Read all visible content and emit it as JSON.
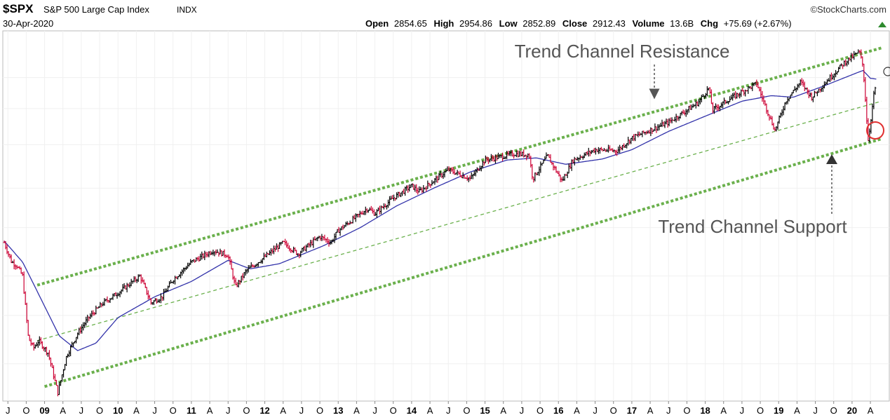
{
  "header": {
    "symbol": "$SPX",
    "name": "S&P 500 Large Cap Index",
    "exchange": "INDX",
    "date": "30-Apr-2020",
    "watermark": "©StockCharts.com",
    "quote": {
      "open_label": "Open",
      "open": "2854.65",
      "high_label": "High",
      "high": "2954.86",
      "low_label": "Low",
      "low": "2852.89",
      "close_label": "Close",
      "close": "2912.43",
      "volume_label": "Volume",
      "volume": "13.6B",
      "chg_label": "Chg",
      "chg": "+75.69 (+2.67%)"
    }
  },
  "annotations": {
    "resistance": "Trend Channel Resistance",
    "support": "Trend Channel Support"
  },
  "colors": {
    "up_bar": "#000000",
    "down_bar": "#cc0033",
    "moving_average": "#3333aa",
    "channel": "#6ab04c",
    "annotation_text": "#555555",
    "circle": "#e03030"
  },
  "chart_data": {
    "type": "bar",
    "x_range": [
      "2008-06",
      "2020-05"
    ],
    "y_scale": "log",
    "ylim": [
      700,
      3500
    ],
    "x_ticks": [
      {
        "label": "J",
        "date": "2008.50",
        "bold": false
      },
      {
        "label": "O",
        "date": "2008.75",
        "bold": false
      },
      {
        "label": "09",
        "date": "2009.00",
        "bold": true
      },
      {
        "label": "A",
        "date": "2009.25",
        "bold": false
      },
      {
        "label": "J",
        "date": "2009.50",
        "bold": false
      },
      {
        "label": "O",
        "date": "2009.75",
        "bold": false
      },
      {
        "label": "10",
        "date": "2010.00",
        "bold": true
      },
      {
        "label": "A",
        "date": "2010.25",
        "bold": false
      },
      {
        "label": "J",
        "date": "2010.50",
        "bold": false
      },
      {
        "label": "O",
        "date": "2010.75",
        "bold": false
      },
      {
        "label": "11",
        "date": "2011.00",
        "bold": true
      },
      {
        "label": "A",
        "date": "2011.25",
        "bold": false
      },
      {
        "label": "J",
        "date": "2011.50",
        "bold": false
      },
      {
        "label": "O",
        "date": "2011.75",
        "bold": false
      },
      {
        "label": "12",
        "date": "2012.00",
        "bold": true
      },
      {
        "label": "A",
        "date": "2012.25",
        "bold": false
      },
      {
        "label": "J",
        "date": "2012.50",
        "bold": false
      },
      {
        "label": "O",
        "date": "2012.75",
        "bold": false
      },
      {
        "label": "13",
        "date": "2013.00",
        "bold": true
      },
      {
        "label": "A",
        "date": "2013.25",
        "bold": false
      },
      {
        "label": "J",
        "date": "2013.50",
        "bold": false
      },
      {
        "label": "O",
        "date": "2013.75",
        "bold": false
      },
      {
        "label": "14",
        "date": "2014.00",
        "bold": true
      },
      {
        "label": "A",
        "date": "2014.25",
        "bold": false
      },
      {
        "label": "J",
        "date": "2014.50",
        "bold": false
      },
      {
        "label": "O",
        "date": "2014.75",
        "bold": false
      },
      {
        "label": "15",
        "date": "2015.00",
        "bold": true
      },
      {
        "label": "A",
        "date": "2015.25",
        "bold": false
      },
      {
        "label": "J",
        "date": "2015.50",
        "bold": false
      },
      {
        "label": "O",
        "date": "2015.75",
        "bold": false
      },
      {
        "label": "16",
        "date": "2016.00",
        "bold": true
      },
      {
        "label": "A",
        "date": "2016.25",
        "bold": false
      },
      {
        "label": "J",
        "date": "2016.50",
        "bold": false
      },
      {
        "label": "O",
        "date": "2016.75",
        "bold": false
      },
      {
        "label": "17",
        "date": "2017.00",
        "bold": true
      },
      {
        "label": "A",
        "date": "2017.25",
        "bold": false
      },
      {
        "label": "J",
        "date": "2017.50",
        "bold": false
      },
      {
        "label": "O",
        "date": "2017.75",
        "bold": false
      },
      {
        "label": "18",
        "date": "2018.00",
        "bold": true
      },
      {
        "label": "A",
        "date": "2018.25",
        "bold": false
      },
      {
        "label": "J",
        "date": "2018.50",
        "bold": false
      },
      {
        "label": "O",
        "date": "2018.75",
        "bold": false
      },
      {
        "label": "19",
        "date": "2019.00",
        "bold": true
      },
      {
        "label": "A",
        "date": "2019.25",
        "bold": false
      },
      {
        "label": "J",
        "date": "2019.50",
        "bold": false
      },
      {
        "label": "O",
        "date": "2019.75",
        "bold": false
      },
      {
        "label": "20",
        "date": "2020.00",
        "bold": true
      },
      {
        "label": "A",
        "date": "2020.25",
        "bold": false
      }
    ],
    "price_keypoints": [
      [
        2008.45,
        1400
      ],
      [
        2008.55,
        1280
      ],
      [
        2008.62,
        1260
      ],
      [
        2008.7,
        1200
      ],
      [
        2008.78,
        900
      ],
      [
        2008.85,
        860
      ],
      [
        2008.92,
        890
      ],
      [
        2009.05,
        840
      ],
      [
        2009.18,
        700
      ],
      [
        2009.3,
        830
      ],
      [
        2009.45,
        920
      ],
      [
        2009.6,
        990
      ],
      [
        2009.8,
        1060
      ],
      [
        2010.0,
        1110
      ],
      [
        2010.3,
        1200
      ],
      [
        2010.45,
        1060
      ],
      [
        2010.6,
        1090
      ],
      [
        2010.75,
        1180
      ],
      [
        2011.0,
        1280
      ],
      [
        2011.3,
        1350
      ],
      [
        2011.5,
        1320
      ],
      [
        2011.6,
        1140
      ],
      [
        2011.75,
        1230
      ],
      [
        2012.0,
        1310
      ],
      [
        2012.25,
        1400
      ],
      [
        2012.45,
        1330
      ],
      [
        2012.75,
        1440
      ],
      [
        2012.9,
        1400
      ],
      [
        2013.0,
        1480
      ],
      [
        2013.4,
        1640
      ],
      [
        2013.5,
        1600
      ],
      [
        2013.75,
        1720
      ],
      [
        2014.0,
        1820
      ],
      [
        2014.1,
        1770
      ],
      [
        2014.5,
        1960
      ],
      [
        2014.8,
        1880
      ],
      [
        2015.0,
        2050
      ],
      [
        2015.4,
        2110
      ],
      [
        2015.6,
        2100
      ],
      [
        2015.65,
        1880
      ],
      [
        2015.85,
        2090
      ],
      [
        2016.05,
        1860
      ],
      [
        2016.2,
        2050
      ],
      [
        2016.5,
        2150
      ],
      [
        2016.8,
        2140
      ],
      [
        2017.0,
        2270
      ],
      [
        2017.5,
        2440
      ],
      [
        2017.9,
        2670
      ],
      [
        2018.05,
        2860
      ],
      [
        2018.1,
        2580
      ],
      [
        2018.3,
        2700
      ],
      [
        2018.7,
        2920
      ],
      [
        2018.95,
        2350
      ],
      [
        2019.1,
        2700
      ],
      [
        2019.3,
        2940
      ],
      [
        2019.45,
        2740
      ],
      [
        2019.7,
        3000
      ],
      [
        2019.9,
        3220
      ],
      [
        2020.1,
        3380
      ],
      [
        2020.15,
        3160
      ],
      [
        2020.22,
        2240
      ],
      [
        2020.26,
        2500
      ],
      [
        2020.3,
        2800
      ],
      [
        2020.33,
        2912
      ]
    ],
    "moving_average_keypoints": [
      [
        2008.45,
        1410
      ],
      [
        2008.7,
        1280
      ],
      [
        2008.95,
        1080
      ],
      [
        2009.2,
        910
      ],
      [
        2009.45,
        850
      ],
      [
        2009.7,
        880
      ],
      [
        2010.0,
        990
      ],
      [
        2010.5,
        1090
      ],
      [
        2011.0,
        1170
      ],
      [
        2011.5,
        1290
      ],
      [
        2011.8,
        1240
      ],
      [
        2012.2,
        1270
      ],
      [
        2012.8,
        1380
      ],
      [
        2013.3,
        1500
      ],
      [
        2013.8,
        1660
      ],
      [
        2014.3,
        1800
      ],
      [
        2014.8,
        1940
      ],
      [
        2015.3,
        2050
      ],
      [
        2015.7,
        2070
      ],
      [
        2016.1,
        2010
      ],
      [
        2016.6,
        2060
      ],
      [
        2017.0,
        2150
      ],
      [
        2017.5,
        2340
      ],
      [
        2018.0,
        2510
      ],
      [
        2018.5,
        2690
      ],
      [
        2018.9,
        2760
      ],
      [
        2019.2,
        2740
      ],
      [
        2019.6,
        2880
      ],
      [
        2020.0,
        3040
      ],
      [
        2020.15,
        3100
      ],
      [
        2020.25,
        2990
      ],
      [
        2020.33,
        2980
      ]
    ],
    "trendlines": [
      {
        "name": "resistance",
        "start": [
          2008.9,
          1150
        ],
        "end": [
          2020.4,
          3440
        ],
        "style": "thick-dotted"
      },
      {
        "name": "midline",
        "start": [
          2008.9,
          890
        ],
        "end": [
          2020.4,
          2690
        ],
        "style": "thin-dashed"
      },
      {
        "name": "support",
        "start": [
          2009.0,
          720
        ],
        "end": [
          2020.4,
          2260
        ],
        "style": "thick-dotted"
      }
    ],
    "grid": true,
    "legend": "none"
  }
}
